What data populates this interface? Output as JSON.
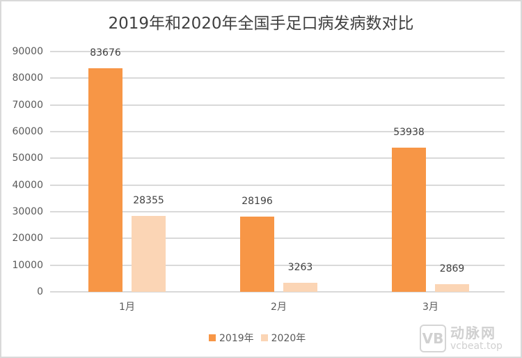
{
  "chart_data": {
    "type": "bar",
    "title": "2019年和2020年全国手足口病发病数对比",
    "xlabel": "",
    "ylabel": "",
    "categories": [
      "1月",
      "2月",
      "3月"
    ],
    "series": [
      {
        "name": "2019年",
        "color": "#f79646",
        "values": [
          83676,
          28196,
          53938
        ]
      },
      {
        "name": "2020年",
        "color": "#fbd5b5",
        "values": [
          28355,
          3263,
          2869
        ]
      }
    ],
    "ylim": [
      0,
      90000
    ],
    "yticks": [
      "0",
      "10000",
      "20000",
      "30000",
      "40000",
      "50000",
      "60000",
      "70000",
      "80000",
      "90000"
    ],
    "grid": true,
    "legend_position": "bottom",
    "data_labels": true
  },
  "title": "2019年和2020年全国手足口病发病数对比",
  "legend": {
    "items": [
      {
        "label": "2019年",
        "color": "#f79646"
      },
      {
        "label": "2020年",
        "color": "#fbd5b5"
      }
    ]
  },
  "watermark": {
    "logo": "VB",
    "cn": "动脉网",
    "en": "vcbeat.top"
  }
}
